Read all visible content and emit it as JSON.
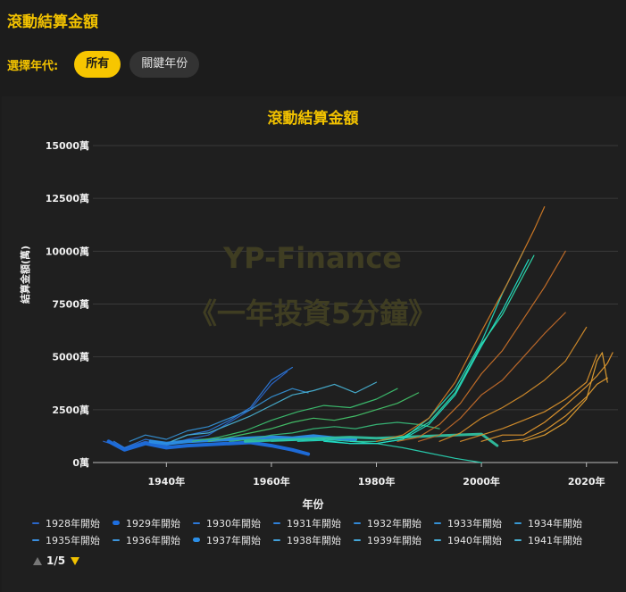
{
  "header": {
    "title": "滾動結算金額"
  },
  "filter": {
    "label": "選擇年代:",
    "options": [
      {
        "label": "所有",
        "active": true
      },
      {
        "label": "關鍵年份",
        "active": false
      }
    ]
  },
  "watermark": {
    "line1": "YP-Finance",
    "line2": "《一年投資5分鐘》"
  },
  "legend_pager": {
    "text": "1/5"
  },
  "chart_data": {
    "type": "line",
    "title": "滾動結算金額",
    "xlabel": "年份",
    "ylabel": "結算金額(萬)",
    "xlim": [
      1926,
      2026
    ],
    "ylim": [
      0,
      15000
    ],
    "x_ticks": [
      1940,
      1960,
      1980,
      2000,
      2020
    ],
    "x_tick_labels": [
      "1940年",
      "1960年",
      "1980年",
      "2000年",
      "2020年"
    ],
    "y_ticks": [
      0,
      2500,
      5000,
      7500,
      10000,
      12500,
      15000
    ],
    "y_tick_labels": [
      "0萬",
      "2500萬",
      "5000萬",
      "7500萬",
      "10000萬",
      "12500萬",
      "15000萬"
    ],
    "grid": true,
    "legend_position": "bottom",
    "legend": [
      {
        "name": "1928年開始",
        "color": "#2a66c9"
      },
      {
        "name": "1929年開始",
        "color": "#1e6fe0",
        "highlight": true
      },
      {
        "name": "1930年開始",
        "color": "#2c78d8"
      },
      {
        "name": "1931年開始",
        "color": "#2f80d8"
      },
      {
        "name": "1932年開始",
        "color": "#3288d6"
      },
      {
        "name": "1933年開始",
        "color": "#3590d4"
      },
      {
        "name": "1934年開始",
        "color": "#3898d2"
      },
      {
        "name": "1935年開始",
        "color": "#3a8fe0"
      },
      {
        "name": "1936年開始",
        "color": "#3d96de"
      },
      {
        "name": "1937年開始",
        "color": "#2b8fe8",
        "highlight": true
      },
      {
        "name": "1938年開始",
        "color": "#42a0da"
      },
      {
        "name": "1939年開始",
        "color": "#44a6d8"
      },
      {
        "name": "1940年開始",
        "color": "#46acd6"
      },
      {
        "name": "1941年開始",
        "color": "#48b2d4"
      }
    ],
    "series": [
      {
        "name": "1928年開始",
        "color": "#2a66c9",
        "width": 1.2,
        "x": [
          1928,
          1932,
          1936,
          1940,
          1944,
          1948,
          1952,
          1956,
          1960,
          1963
        ],
        "y": [
          1000,
          700,
          1000,
          800,
          1100,
          1300,
          1900,
          2500,
          3700,
          4300
        ]
      },
      {
        "name": "1929年開始",
        "color": "#1e6fe0",
        "width": 4,
        "x": [
          1929,
          1932,
          1936,
          1940,
          1944,
          1948,
          1952,
          1956,
          1960,
          1964,
          1967
        ],
        "y": [
          1000,
          600,
          900,
          700,
          800,
          850,
          900,
          950,
          800,
          600,
          400
        ]
      },
      {
        "name": "1930年開始",
        "color": "#2c78d8",
        "width": 1.2,
        "x": [
          1930,
          1932,
          1936,
          1940,
          1944,
          1948,
          1952,
          1956,
          1960,
          1964
        ],
        "y": [
          1000,
          700,
          1100,
          900,
          1300,
          1500,
          2000,
          2600,
          3900,
          4500
        ]
      },
      {
        "name": "1933年開始",
        "color": "#3590d4",
        "width": 1.2,
        "x": [
          1933,
          1936,
          1940,
          1944,
          1948,
          1952,
          1956,
          1960,
          1964,
          1967
        ],
        "y": [
          1000,
          1300,
          1100,
          1500,
          1700,
          2100,
          2500,
          3100,
          3500,
          3300
        ]
      },
      {
        "name": "1937年開始",
        "color": "#2b8fe8",
        "width": 4,
        "x": [
          1937,
          1940,
          1944,
          1948,
          1952,
          1956,
          1960,
          1964,
          1968,
          1972,
          1976
        ],
        "y": [
          1000,
          900,
          1000,
          1050,
          1100,
          1150,
          1200,
          1150,
          1250,
          1150,
          1100
        ]
      },
      {
        "name": "1941年開始",
        "color": "#48b2d4",
        "width": 1.2,
        "x": [
          1941,
          1944,
          1948,
          1952,
          1956,
          1960,
          1964,
          1968,
          1972,
          1976,
          1980
        ],
        "y": [
          1000,
          1300,
          1400,
          1800,
          2200,
          2700,
          3200,
          3400,
          3700,
          3300,
          3800
        ]
      },
      {
        "name": "",
        "color": "#3cc070",
        "width": 1.2,
        "x": [
          1945,
          1950,
          1955,
          1960,
          1965,
          1970,
          1975,
          1980,
          1984
        ],
        "y": [
          1000,
          1200,
          1500,
          2000,
          2400,
          2700,
          2600,
          3000,
          3500
        ]
      },
      {
        "name": "",
        "color": "#44c46a",
        "width": 1.2,
        "x": [
          1948,
          1952,
          1956,
          1960,
          1964,
          1968,
          1972,
          1976,
          1980,
          1984,
          1988
        ],
        "y": [
          1000,
          1200,
          1400,
          1600,
          1900,
          2100,
          2000,
          2200,
          2500,
          2800,
          3300
        ]
      },
      {
        "name": "",
        "color": "#38b878",
        "width": 1.2,
        "x": [
          1952,
          1956,
          1960,
          1964,
          1968,
          1972,
          1976,
          1980,
          1984,
          1988,
          1992
        ],
        "y": [
          1000,
          1100,
          1300,
          1400,
          1600,
          1700,
          1600,
          1800,
          1900,
          1800,
          1600
        ]
      },
      {
        "name": "",
        "color": "#30c0a0",
        "width": 3,
        "x": [
          1955,
          1960,
          1965,
          1970,
          1975,
          1980,
          1985,
          1990,
          1995,
          2000,
          2003
        ],
        "y": [
          1000,
          1050,
          1100,
          1150,
          1200,
          1150,
          1200,
          1250,
          1300,
          1350,
          800
        ]
      },
      {
        "name": "",
        "color": "#28d0b0",
        "width": 1.2,
        "x": [
          1960,
          1965,
          1970,
          1975,
          1980,
          1985,
          1990,
          1995,
          2000
        ],
        "y": [
          1000,
          1050,
          1100,
          1000,
          900,
          700,
          450,
          200,
          0
        ]
      },
      {
        "name": "",
        "color": "#22d8c0",
        "width": 1.2,
        "x": [
          1965,
          1970,
          1975,
          1980,
          1985,
          1990,
          1995,
          2000,
          2004,
          2008
        ],
        "y": [
          1000,
          1050,
          900,
          900,
          1100,
          2100,
          3500,
          5700,
          8000,
          10000
        ]
      },
      {
        "name": "",
        "color": "#20e0c8",
        "width": 1.2,
        "x": [
          1970,
          1975,
          1980,
          1985,
          1990,
          1995,
          2000,
          2004,
          2009
        ],
        "y": [
          1000,
          900,
          900,
          1100,
          1800,
          3200,
          5500,
          7200,
          9600
        ]
      },
      {
        "name": "",
        "color": "#2ee0b0",
        "width": 1.2,
        "x": [
          1975,
          1980,
          1985,
          1990,
          1995,
          2000,
          2004,
          2010
        ],
        "y": [
          1000,
          1000,
          1200,
          1900,
          3300,
          5600,
          7000,
          9800
        ]
      },
      {
        "name": "",
        "color": "#d07a25",
        "width": 1.2,
        "x": [
          1980,
          1985,
          1990,
          1995,
          2000,
          2005,
          2010,
          2012
        ],
        "y": [
          1000,
          1300,
          2100,
          3800,
          6200,
          8500,
          11000,
          12100
        ]
      },
      {
        "name": "",
        "color": "#c87028",
        "width": 1.2,
        "x": [
          1984,
          1988,
          1992,
          1996,
          2000,
          2004,
          2008,
          2012,
          2016
        ],
        "y": [
          1000,
          1200,
          1800,
          2800,
          4200,
          5300,
          6800,
          8300,
          10000
        ]
      },
      {
        "name": "",
        "color": "#c06a2a",
        "width": 1.2,
        "x": [
          1988,
          1992,
          1996,
          2000,
          2004,
          2008,
          2012,
          2016
        ],
        "y": [
          1000,
          1300,
          2100,
          3200,
          3900,
          5000,
          6100,
          7100
        ]
      },
      {
        "name": "",
        "color": "#d08a2a",
        "width": 1.2,
        "x": [
          1992,
          1996,
          2000,
          2004,
          2008,
          2012,
          2016,
          2020
        ],
        "y": [
          1000,
          1400,
          2100,
          2600,
          3200,
          3900,
          4800,
          6400
        ]
      },
      {
        "name": "",
        "color": "#d8902c",
        "width": 1.2,
        "x": [
          1996,
          2000,
          2004,
          2008,
          2012,
          2016,
          2020,
          2022
        ],
        "y": [
          1000,
          1300,
          1600,
          2000,
          2400,
          3000,
          3800,
          5100
        ]
      },
      {
        "name": "",
        "color": "#e0962e",
        "width": 1.2,
        "x": [
          2000,
          2004,
          2008,
          2012,
          2016,
          2020,
          2022,
          2024,
          2025
        ],
        "y": [
          1000,
          1300,
          1300,
          1900,
          2700,
          3600,
          4100,
          4700,
          5200
        ]
      },
      {
        "name": "",
        "color": "#e09a30",
        "width": 1.2,
        "x": [
          2004,
          2008,
          2012,
          2016,
          2020,
          2022,
          2024
        ],
        "y": [
          1000,
          1100,
          1500,
          2200,
          3100,
          3700,
          4000
        ]
      },
      {
        "name": "",
        "color": "#e4a030",
        "width": 1.2,
        "x": [
          2008,
          2012,
          2016,
          2020,
          2022,
          2023,
          2024
        ],
        "y": [
          1000,
          1300,
          1900,
          3000,
          4800,
          5200,
          3800
        ]
      }
    ]
  }
}
